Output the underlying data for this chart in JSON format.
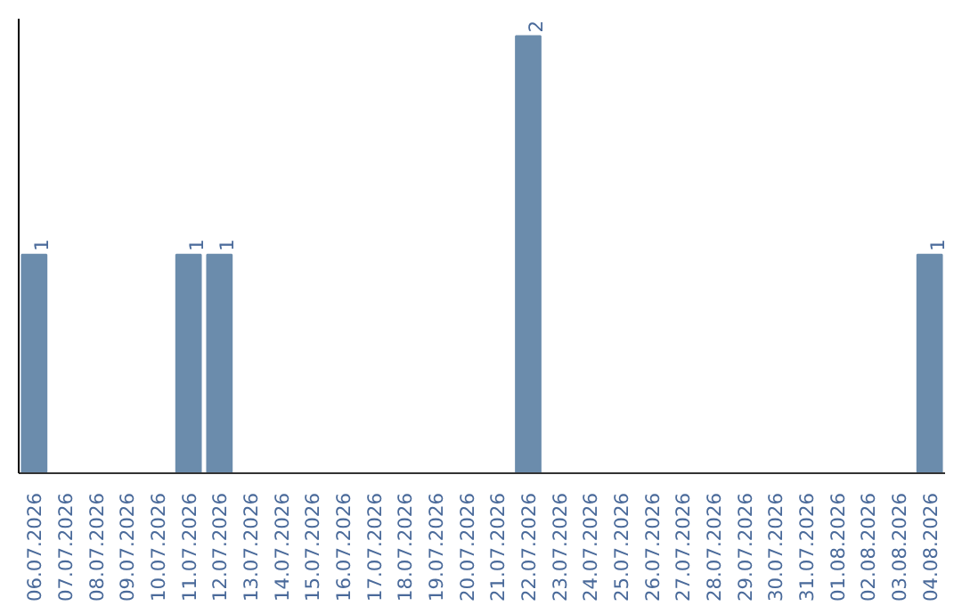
{
  "chart_data": {
    "type": "bar",
    "categories": [
      "06.07.2026",
      "07.07.2026",
      "08.07.2026",
      "09.07.2026",
      "10.07.2026",
      "11.07.2026",
      "12.07.2026",
      "13.07.2026",
      "14.07.2026",
      "15.07.2026",
      "16.07.2026",
      "17.07.2026",
      "18.07.2026",
      "19.07.2026",
      "20.07.2026",
      "21.07.2026",
      "22.07.2026",
      "23.07.2026",
      "24.07.2026",
      "25.07.2026",
      "26.07.2026",
      "27.07.2026",
      "28.07.2026",
      "29.07.2026",
      "30.07.2026",
      "31.07.2026",
      "01.08.2026",
      "02.08.2026",
      "03.08.2026",
      "04.08.2026"
    ],
    "values": [
      1,
      0,
      0,
      0,
      0,
      1,
      1,
      0,
      0,
      0,
      0,
      0,
      0,
      0,
      0,
      0,
      2,
      0,
      0,
      0,
      0,
      0,
      0,
      0,
      0,
      0,
      0,
      0,
      0,
      1
    ],
    "value_labels": [
      "1",
      null,
      null,
      null,
      null,
      "1",
      "1",
      null,
      null,
      null,
      null,
      null,
      null,
      null,
      null,
      null,
      "2",
      null,
      null,
      null,
      null,
      null,
      null,
      null,
      null,
      null,
      null,
      null,
      null,
      "1"
    ],
    "color": "#6b8cac",
    "grid": false,
    "tick_labels": "x"
  }
}
